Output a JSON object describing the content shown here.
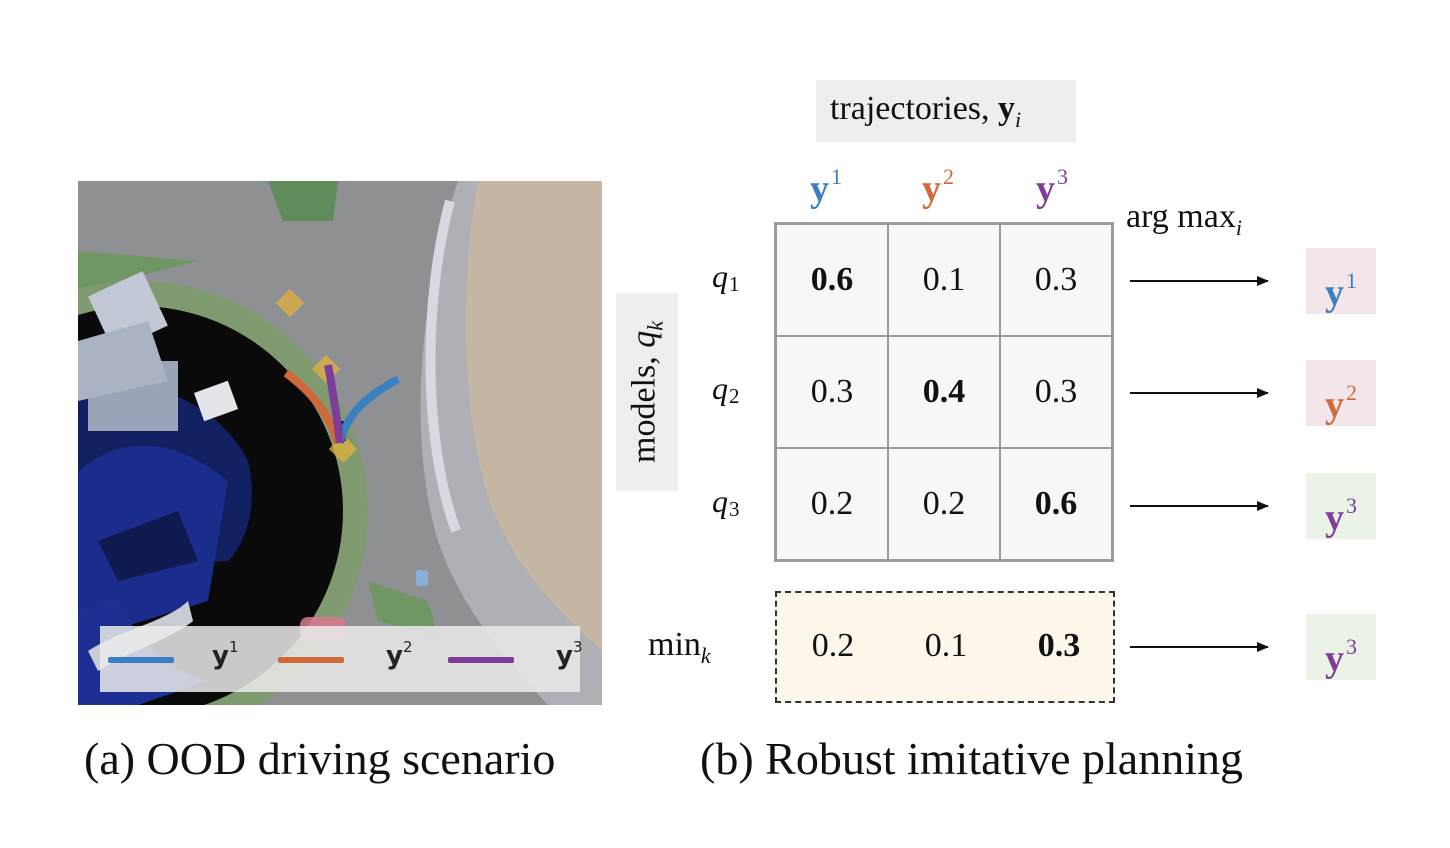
{
  "colors": {
    "y1": "#3a7fc1",
    "y2": "#d1683a",
    "y3": "#7d3d98",
    "out_bg_1": "#f3e6ea",
    "out_bg_2": "#f3e6ea",
    "out_bg_3": "#ebf3e6",
    "min_bg": "#fdf6ea",
    "label_bg": "#eeeeee"
  },
  "panel_a": {
    "caption": "(a) OOD driving scenario",
    "legend": [
      {
        "base": "y",
        "sup": "1",
        "color": "#3a7fc1"
      },
      {
        "base": "y",
        "sup": "2",
        "color": "#d1683a"
      },
      {
        "base": "y",
        "sup": "3",
        "color": "#7d3d98"
      }
    ]
  },
  "panel_b": {
    "caption": "(b) Robust imitative planning",
    "top_label": "trajectories, ",
    "top_label_bold": "y",
    "top_label_sub": "i",
    "side_label": "models, ",
    "side_label_var": "q",
    "side_label_sub": "k",
    "argmax_label": "arg max",
    "argmax_sub": "i",
    "columns": [
      {
        "base": "y",
        "sup": "1"
      },
      {
        "base": "y",
        "sup": "2"
      },
      {
        "base": "y",
        "sup": "3"
      }
    ],
    "rows": [
      {
        "var": "q",
        "sub": "1",
        "values": [
          "0.6",
          "0.1",
          "0.3"
        ],
        "best": 0,
        "out_base": "y",
        "out_sup": "1"
      },
      {
        "var": "q",
        "sub": "2",
        "values": [
          "0.3",
          "0.4",
          "0.3"
        ],
        "best": 1,
        "out_base": "y",
        "out_sup": "2"
      },
      {
        "var": "q",
        "sub": "3",
        "values": [
          "0.2",
          "0.2",
          "0.6"
        ],
        "best": 2,
        "out_base": "y",
        "out_sup": "3"
      }
    ],
    "min_row": {
      "label": "min",
      "sub": "k",
      "values": [
        "0.2",
        "0.1",
        "0.3"
      ],
      "best": 2,
      "out_base": "y",
      "out_sup": "3"
    }
  }
}
